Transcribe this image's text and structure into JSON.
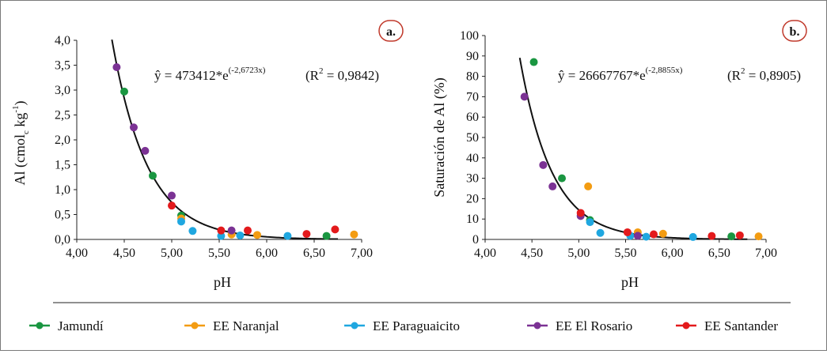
{
  "legend": [
    {
      "name": "Jamundí",
      "color": "#1a9641"
    },
    {
      "name": "EE Naranjal",
      "color": "#f39c12"
    },
    {
      "name": "EE Paraguaicito",
      "color": "#1fa7e0"
    },
    {
      "name": "EE El Rosario",
      "color": "#7b3294"
    },
    {
      "name": "EE Santander",
      "color": "#e31a1c"
    }
  ],
  "chart_data": [
    {
      "type": "scatter",
      "panel_label": "a.",
      "xlabel": "pH",
      "ylabel_main": "Al (cmol",
      "ylabel_sub": "c",
      "ylabel_mid": " kg",
      "ylabel_sup": "-1",
      "ylabel_end": ")",
      "xlim": [
        4.0,
        7.0
      ],
      "ylim": [
        0.0,
        4.0
      ],
      "x_ticks": [
        "4,00",
        "4,50",
        "5,00",
        "5,50",
        "6,00",
        "6,50",
        "7,00"
      ],
      "y_ticks": [
        "0,0",
        "0,5",
        "1,0",
        "1,5",
        "2,0",
        "2,5",
        "3,0",
        "3,5",
        "4,0"
      ],
      "equation_main": "ŷ = 473412*e",
      "equation_exp": "(-2,6723x)",
      "r2_pre": "(R",
      "r2_sup": "2",
      "r2_post": " = 0,9842)",
      "fit": {
        "a": 473412,
        "b": -2.6723,
        "x_range": [
          4.37,
          6.75
        ]
      },
      "series": [
        {
          "name": "Jamundí",
          "points": [
            [
              4.5,
              2.97
            ],
            [
              4.8,
              1.28
            ],
            [
              5.1,
              0.48
            ],
            [
              6.63,
              0.07
            ]
          ]
        },
        {
          "name": "EE Naranjal",
          "points": [
            [
              5.1,
              0.42
            ],
            [
              5.63,
              0.1
            ],
            [
              5.9,
              0.09
            ],
            [
              6.92,
              0.1
            ]
          ]
        },
        {
          "name": "EE Paraguaicito",
          "points": [
            [
              5.1,
              0.36
            ],
            [
              5.22,
              0.17
            ],
            [
              5.52,
              0.07
            ],
            [
              5.72,
              0.08
            ],
            [
              6.22,
              0.07
            ]
          ]
        },
        {
          "name": "EE El Rosario",
          "points": [
            [
              4.42,
              3.46
            ],
            [
              4.6,
              2.25
            ],
            [
              4.72,
              1.78
            ],
            [
              5.0,
              0.88
            ],
            [
              5.63,
              0.18
            ]
          ]
        },
        {
          "name": "EE Santander",
          "points": [
            [
              5.0,
              0.68
            ],
            [
              5.52,
              0.18
            ],
            [
              5.8,
              0.18
            ],
            [
              6.42,
              0.11
            ],
            [
              6.72,
              0.2
            ]
          ]
        }
      ]
    },
    {
      "type": "scatter",
      "panel_label": "b.",
      "xlabel": "pH",
      "ylabel": "Saturación de Al (%)",
      "xlim": [
        4.0,
        7.0
      ],
      "ylim": [
        0,
        100
      ],
      "x_ticks": [
        "4,00",
        "4,50",
        "5,00",
        "5,50",
        "6,00",
        "6,50",
        "7,00"
      ],
      "y_ticks": [
        "0",
        "10",
        "20",
        "30",
        "40",
        "50",
        "60",
        "70",
        "80",
        "90",
        "100"
      ],
      "equation_main": "ŷ = 26667767*e",
      "equation_exp": "(-2,8855x)",
      "r2_pre": "(R",
      "r2_sup": "2",
      "r2_post": " = 0,8905)",
      "fit": {
        "a": 26667767,
        "b": -2.8855,
        "x_range": [
          4.37,
          6.8
        ]
      },
      "series": [
        {
          "name": "Jamundí",
          "points": [
            [
              4.52,
              87
            ],
            [
              4.82,
              30
            ],
            [
              5.12,
              9.5
            ],
            [
              6.63,
              1.5
            ]
          ]
        },
        {
          "name": "EE Naranjal",
          "points": [
            [
              5.1,
              26
            ],
            [
              5.63,
              3.5
            ],
            [
              5.9,
              2.8
            ],
            [
              6.92,
              1.5
            ]
          ]
        },
        {
          "name": "EE Paraguaicito",
          "points": [
            [
              5.12,
              8.5
            ],
            [
              5.23,
              3.2
            ],
            [
              5.55,
              1.8
            ],
            [
              5.72,
              1.3
            ],
            [
              6.22,
              1.2
            ]
          ]
        },
        {
          "name": "EE El Rosario",
          "points": [
            [
              4.42,
              70
            ],
            [
              4.62,
              36.5
            ],
            [
              4.72,
              26
            ],
            [
              5.02,
              11.5
            ],
            [
              5.63,
              1.8
            ]
          ]
        },
        {
          "name": "EE Santander",
          "points": [
            [
              5.02,
              13
            ],
            [
              5.52,
              3.5
            ],
            [
              5.8,
              2.5
            ],
            [
              6.42,
              1.7
            ],
            [
              6.72,
              2
            ]
          ]
        }
      ]
    }
  ]
}
